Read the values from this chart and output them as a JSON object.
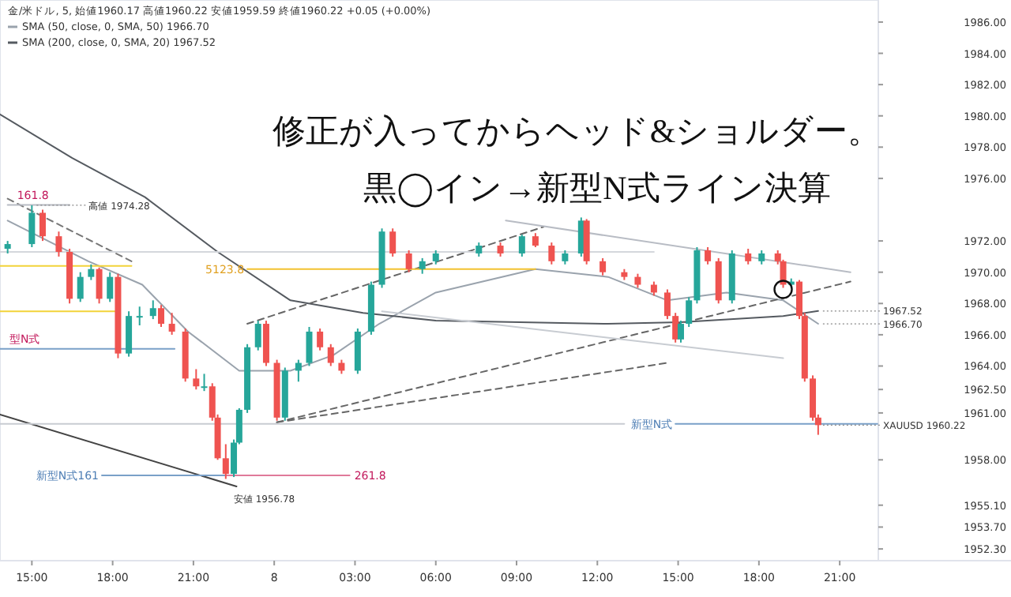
{
  "chart_data": {
    "type": "candlestick",
    "title": "修正が入ってからヘッド&ショルダー。",
    "subtitle": "黒◯イン→新型N式ライン決算",
    "x": [
      "--06-07T14:06",
      "--06-07T15:00",
      "--06-07T15:24",
      "--06-07T16:00",
      "--06-07T16:24",
      "--06-07T16:48",
      "--06-07T17:12",
      "--06-07T17:30",
      "--06-07T17:54",
      "--06-07T18:12",
      "--06-07T18:36",
      "--06-07T19:00",
      "--06-07T19:30",
      "--06-07T19:48",
      "--06-07T20:12",
      "--06-07T20:42",
      "--06-07T21:06",
      "--06-07T21:24",
      "--06-07T21:42",
      "--06-07T21:54",
      "--06-07T22:12",
      "--06-07T22:30",
      "--06-07T22:42",
      "--06-07T23:00",
      "--06-07T23:24",
      "--06-07T23:42",
      "--06-08T00:06",
      "--06-08T00:24",
      "--06-08T00:54",
      "--06-08T01:18",
      "--06-08T01:42",
      "--06-08T02:06",
      "--06-08T02:30",
      "--06-08T03:06",
      "--06-08T03:36",
      "--06-08T04:00",
      "--06-08T04:24",
      "--06-08T05:00",
      "--06-08T05:30",
      "--06-08T06:00",
      "--06-08T07:36",
      "--06-08T08:24",
      "--06-08T09:12",
      "--06-08T09:42",
      "--06-08T10:18",
      "--06-08T10:48",
      "--06-08T11:24",
      "--06-08T11:36",
      "--06-08T12:12",
      "--06-08T13:00",
      "--06-08T13:30",
      "--06-08T14:06",
      "--06-08T14:36",
      "--06-08T14:54",
      "--06-08T15:06",
      "--06-08T15:24",
      "--06-08T15:42",
      "--06-08T16:06",
      "--06-08T16:30",
      "--06-08T17:00",
      "--06-08T17:36",
      "--06-08T18:06",
      "--06-08T18:42",
      "--06-08T18:54",
      "--06-08T19:12",
      "--06-08T19:30",
      "--06-08T19:42",
      "--06-08T20:00",
      "--06-08T20:12"
    ],
    "ohlc": [
      [
        1971.5,
        1972.0,
        1971.2,
        1971.8
      ],
      [
        1971.8,
        1974.28,
        1971.6,
        1973.8
      ],
      [
        1973.8,
        1974.0,
        1972.0,
        1972.3
      ],
      [
        1972.3,
        1972.6,
        1971.0,
        1971.3
      ],
      [
        1971.3,
        1971.5,
        1968.0,
        1968.3
      ],
      [
        1968.3,
        1970.0,
        1968.1,
        1969.7
      ],
      [
        1969.7,
        1970.5,
        1969.5,
        1970.2
      ],
      [
        1970.2,
        1970.3,
        1968.0,
        1968.3
      ],
      [
        1968.3,
        1970.0,
        1968.1,
        1969.7
      ],
      [
        1969.7,
        1969.9,
        1964.5,
        1964.8
      ],
      [
        1964.8,
        1967.5,
        1964.6,
        1967.2
      ],
      [
        1967.2,
        1967.8,
        1966.6,
        1967.2
      ],
      [
        1967.2,
        1968.2,
        1967.0,
        1967.7
      ],
      [
        1967.7,
        1967.9,
        1966.5,
        1966.7
      ],
      [
        1966.7,
        1967.4,
        1966.0,
        1966.2
      ],
      [
        1966.2,
        1966.4,
        1963.0,
        1963.2
      ],
      [
        1963.2,
        1963.8,
        1962.5,
        1962.7
      ],
      [
        1962.7,
        1963.5,
        1962.4,
        1962.7
      ],
      [
        1962.7,
        1962.9,
        1960.5,
        1960.7
      ],
      [
        1960.7,
        1960.9,
        1958.0,
        1958.1
      ],
      [
        1958.1,
        1959.0,
        1956.78,
        1957.1
      ],
      [
        1957.1,
        1959.3,
        1956.9,
        1959.1
      ],
      [
        1959.1,
        1961.3,
        1959.0,
        1961.2
      ],
      [
        1961.2,
        1965.4,
        1961.0,
        1965.2
      ],
      [
        1965.2,
        1966.9,
        1965.0,
        1966.7
      ],
      [
        1966.7,
        1966.9,
        1964.0,
        1964.2
      ],
      [
        1964.2,
        1964.4,
        1960.5,
        1960.7
      ],
      [
        1960.7,
        1963.9,
        1960.5,
        1963.7
      ],
      [
        1963.7,
        1964.4,
        1963.0,
        1964.2
      ],
      [
        1964.2,
        1966.5,
        1964.0,
        1966.2
      ],
      [
        1966.2,
        1966.4,
        1965.0,
        1965.2
      ],
      [
        1965.2,
        1965.4,
        1964.0,
        1964.2
      ],
      [
        1964.2,
        1964.4,
        1963.5,
        1963.7
      ],
      [
        1963.7,
        1966.4,
        1963.5,
        1966.2
      ],
      [
        1966.2,
        1969.4,
        1966.0,
        1969.2
      ],
      [
        1969.2,
        1972.8,
        1969.0,
        1972.6
      ],
      [
        1972.6,
        1972.8,
        1971.0,
        1971.2
      ],
      [
        1971.2,
        1971.4,
        1970.0,
        1970.2
      ],
      [
        1970.2,
        1970.9,
        1969.9,
        1970.7
      ],
      [
        1970.7,
        1971.4,
        1970.5,
        1971.2
      ],
      [
        1971.2,
        1971.9,
        1971.0,
        1971.7
      ],
      [
        1971.7,
        1971.9,
        1971.0,
        1971.2
      ],
      [
        1971.2,
        1972.4,
        1971.0,
        1972.3
      ],
      [
        1972.3,
        1972.5,
        1971.6,
        1971.7
      ],
      [
        1971.7,
        1971.9,
        1970.5,
        1970.7
      ],
      [
        1970.7,
        1971.4,
        1970.5,
        1971.2
      ],
      [
        1971.2,
        1973.5,
        1971.0,
        1973.3
      ],
      [
        1973.3,
        1973.4,
        1970.5,
        1970.7
      ],
      [
        1970.7,
        1970.9,
        1969.8,
        1970.0
      ],
      [
        1970.0,
        1970.2,
        1969.5,
        1969.7
      ],
      [
        1969.7,
        1969.9,
        1969.0,
        1969.2
      ],
      [
        1969.2,
        1969.4,
        1968.5,
        1968.7
      ],
      [
        1968.7,
        1968.9,
        1967.0,
        1967.2
      ],
      [
        1967.2,
        1967.4,
        1965.5,
        1965.7
      ],
      [
        1965.7,
        1966.9,
        1965.5,
        1966.7
      ],
      [
        1966.7,
        1968.4,
        1966.5,
        1968.2
      ],
      [
        1968.2,
        1971.6,
        1968.0,
        1971.4
      ],
      [
        1971.4,
        1971.6,
        1970.5,
        1970.7
      ],
      [
        1970.7,
        1970.9,
        1968.0,
        1968.2
      ],
      [
        1968.2,
        1971.4,
        1968.0,
        1971.2
      ],
      [
        1971.2,
        1971.5,
        1970.5,
        1970.7
      ],
      [
        1970.7,
        1971.4,
        1970.5,
        1971.2
      ],
      [
        1971.2,
        1971.4,
        1970.5,
        1970.7
      ],
      [
        1970.7,
        1970.8,
        1969.0,
        1969.2
      ],
      [
        1969.2,
        1969.6,
        1969.0,
        1969.4
      ],
      [
        1969.4,
        1969.5,
        1967.0,
        1967.2
      ],
      [
        1967.2,
        1967.4,
        1963.0,
        1963.2
      ],
      [
        1963.2,
        1963.4,
        1960.5,
        1960.7
      ],
      [
        1960.7,
        1960.9,
        1959.6,
        1960.22
      ]
    ],
    "series": [
      {
        "type": "line",
        "name": "SMA (50, close, 0, SMA, 50)  1966.70",
        "color": "#9aa3ad",
        "x": [
          "--06-07T14:06",
          "--06-07T17:06",
          "--06-07T19:06",
          "--06-07T20:48",
          "--06-07T22:42",
          "--06-08T00:36",
          "--06-08T02:12",
          "--06-08T03:54",
          "--06-08T06:00",
          "--06-08T09:42",
          "--06-08T12:24",
          "--06-08T14:36",
          "--06-08T16:48",
          "--06-08T18:54",
          "--06-08T20:12"
        ],
        "values": [
          1973.3,
          1970.7,
          1969.2,
          1966.2,
          1963.7,
          1963.7,
          1964.7,
          1966.7,
          1968.7,
          1970.2,
          1969.7,
          1968.2,
          1968.7,
          1968.2,
          1966.7
        ]
      },
      {
        "type": "line",
        "name": "SMA (200, close, 0, SMA, 20)  1967.52",
        "color": "#555a60",
        "x": [
          "--06-07T13:49",
          "--06-07T16:30",
          "--06-07T19:12",
          "--06-07T21:54",
          "--06-08T00:36",
          "--06-08T03:18",
          "--06-08T06:00",
          "--06-08T12:24",
          "--06-08T15:06",
          "--06-08T18:54",
          "--06-08T20:12"
        ],
        "values": [
          1980.1,
          1977.3,
          1974.8,
          1971.3,
          1968.2,
          1967.4,
          1966.9,
          1966.7,
          1966.8,
          1967.2,
          1967.52
        ]
      },
      {
        "type": "line",
        "color": "#444444",
        "line_style": "solid",
        "x": [
          "--06-07T13:49",
          "--06-07T22:36"
        ],
        "values": [
          1960.9,
          1956.3
        ]
      },
      {
        "type": "line",
        "color": "#777777",
        "line_style": "dashed",
        "x": [
          "--06-07T14:06",
          "--06-07T18:42"
        ],
        "values": [
          1974.7,
          1970.7
        ]
      },
      {
        "type": "line",
        "color": "#666666",
        "line_style": "dashed",
        "x": [
          "--06-07T23:00",
          "--06-08T10:00"
        ],
        "values": [
          1966.7,
          1972.9
        ]
      },
      {
        "type": "line",
        "color": "#666666",
        "line_style": "dashed",
        "x": [
          "--06-08T00:06",
          "--06-08T21:24"
        ],
        "values": [
          1960.4,
          1969.4
        ]
      },
      {
        "type": "line",
        "color": "#666666",
        "line_style": "dashed",
        "x": [
          "--06-08T00:06",
          "--06-08T14:36"
        ],
        "values": [
          1960.4,
          1964.2
        ]
      },
      {
        "type": "line",
        "color": "#b8bcc4",
        "line_style": "solid",
        "x": [
          "--06-08T08:36",
          "--06-08T21:24"
        ],
        "values": [
          1973.3,
          1970.0
        ]
      },
      {
        "type": "line",
        "color": "#c8ccd2",
        "line_style": "solid",
        "x": [
          "--06-08T04:00",
          "--06-08T18:54"
        ],
        "values": [
          1967.5,
          1964.5
        ]
      },
      {
        "type": "line",
        "name": "161.8",
        "color": "#b8bcc4",
        "line_style": "solid",
        "x": [
          "--06-07T14:06",
          "--06-07T16:24"
        ],
        "values": [
          1974.3,
          1974.3
        ]
      },
      {
        "type": "line",
        "color": "#f2d33a",
        "line_style": "solid",
        "x": [
          "--06-07T13:49",
          "--06-07T18:42"
        ],
        "values": [
          1970.4,
          1970.4
        ]
      },
      {
        "type": "line",
        "color": "#f2d33a",
        "line_style": "solid",
        "x": [
          "--06-07T13:49",
          "--06-07T18:12"
        ],
        "values": [
          1967.5,
          1967.5
        ]
      },
      {
        "type": "line",
        "name": "5123.8",
        "color": "#f2c230",
        "line_style": "solid",
        "x": [
          "--06-07T23:00",
          "--06-08T09:42"
        ],
        "values": [
          1970.2,
          1970.2
        ]
      },
      {
        "type": "line",
        "color": "#d4d7dc",
        "line_style": "solid",
        "x": [
          "--06-07T13:49",
          "--06-08T14:06"
        ],
        "values": [
          1971.3,
          1971.3
        ]
      },
      {
        "type": "line",
        "name": "型N式",
        "color": "#7aa0c8",
        "line_style": "solid",
        "x": [
          "--06-07T13:49",
          "--06-07T20:18"
        ],
        "values": [
          1965.1,
          1965.1
        ]
      },
      {
        "type": "line",
        "color": "#c8ccd2",
        "line_style": "solid",
        "x": [
          "--06-07T13:49",
          "--06-08T13:00"
        ],
        "values": [
          1960.3,
          1960.3
        ]
      },
      {
        "type": "line",
        "name": "新型N式",
        "color": "#7aa0c8",
        "line_style": "solid",
        "x": [
          "--06-08T14:54",
          "--06-08T22:24"
        ],
        "values": [
          1960.3,
          1960.3
        ]
      },
      {
        "type": "line",
        "name": "新型N式161",
        "color": "#7aa0c8",
        "line_style": "solid",
        "x": [
          "--06-07T17:36",
          "--06-07T22:12"
        ],
        "values": [
          1957.0,
          1957.0
        ]
      },
      {
        "type": "line",
        "name": "261.8",
        "color": "#e07a9a",
        "line_style": "solid",
        "x": [
          "--06-08T02:48",
          "--06-07T22:12"
        ],
        "values": [
          1957.0,
          1957.0
        ]
      }
    ],
    "annotations": [
      "金/米ドル, 5,  始値1960.17  高値1960.22  安値1959.59  終値1960.22  +0.05 (+0.00%)",
      {
        "text": "高値 1974.28",
        "x": "--06-07T15:00",
        "y": 1974.28
      },
      {
        "text": "1967.52",
        "x": "--06-08T20:12",
        "y": 1967.52
      },
      {
        "text": "1966.70",
        "x": "--06-08T20:12",
        "y": 1966.7
      },
      {
        "text": "XAUUSD 1960.22",
        "x": "--06-08T20:12",
        "y": 1960.22
      },
      {
        "text": "安値 1956.78",
        "x": "--06-07T22:12",
        "y": 1956.78
      }
    ],
    "legend": "top left",
    "xlim": [
      "--06-07T13:49",
      "--06-08T22:26"
    ],
    "ylim": [
      1951.55,
      1987.41
    ],
    "xticks": [
      {
        "value": "--06-07T15:00",
        "label": "15:00"
      },
      {
        "value": "--06-07T18:00",
        "label": "18:00"
      },
      {
        "value": "--06-07T21:00",
        "label": "21:00"
      },
      {
        "value": "--06-08T00:00",
        "label": "8"
      },
      {
        "value": "--06-08T03:00",
        "label": "03:00"
      },
      {
        "value": "--06-08T06:00",
        "label": "06:00"
      },
      {
        "value": "--06-08T09:00",
        "label": "09:00"
      },
      {
        "value": "--06-08T12:00",
        "label": "12:00"
      },
      {
        "value": "--06-08T15:00",
        "label": "15:00"
      },
      {
        "value": "--06-08T18:00",
        "label": "18:00"
      },
      {
        "value": "--06-08T21:00",
        "label": "21:00"
      }
    ],
    "yticks": [
      {
        "value": 1986,
        "label": "1986.00"
      },
      {
        "value": 1984,
        "label": "1984.00"
      },
      {
        "value": 1982,
        "label": "1982.00"
      },
      {
        "value": 1980,
        "label": "1980.00"
      },
      {
        "value": 1978,
        "label": "1978.00"
      },
      {
        "value": 1976,
        "label": "1976.00"
      },
      {
        "value": 1972,
        "label": "1972.00"
      },
      {
        "value": 1970,
        "label": "1970.00"
      },
      {
        "value": 1968,
        "label": "1968.00"
      },
      {
        "value": 1966,
        "label": "1966.00"
      },
      {
        "value": 1964,
        "label": "1964.00"
      },
      {
        "value": 1962.5,
        "label": "1962.50"
      },
      {
        "value": 1961,
        "label": "1961.00"
      },
      {
        "value": 1958,
        "label": "1958.00"
      },
      {
        "value": 1955.1,
        "label": "1955.10"
      },
      {
        "value": 1953.7,
        "label": "1953.70"
      },
      {
        "value": 1952.3,
        "label": "1952.30"
      }
    ],
    "grid": false
  }
}
